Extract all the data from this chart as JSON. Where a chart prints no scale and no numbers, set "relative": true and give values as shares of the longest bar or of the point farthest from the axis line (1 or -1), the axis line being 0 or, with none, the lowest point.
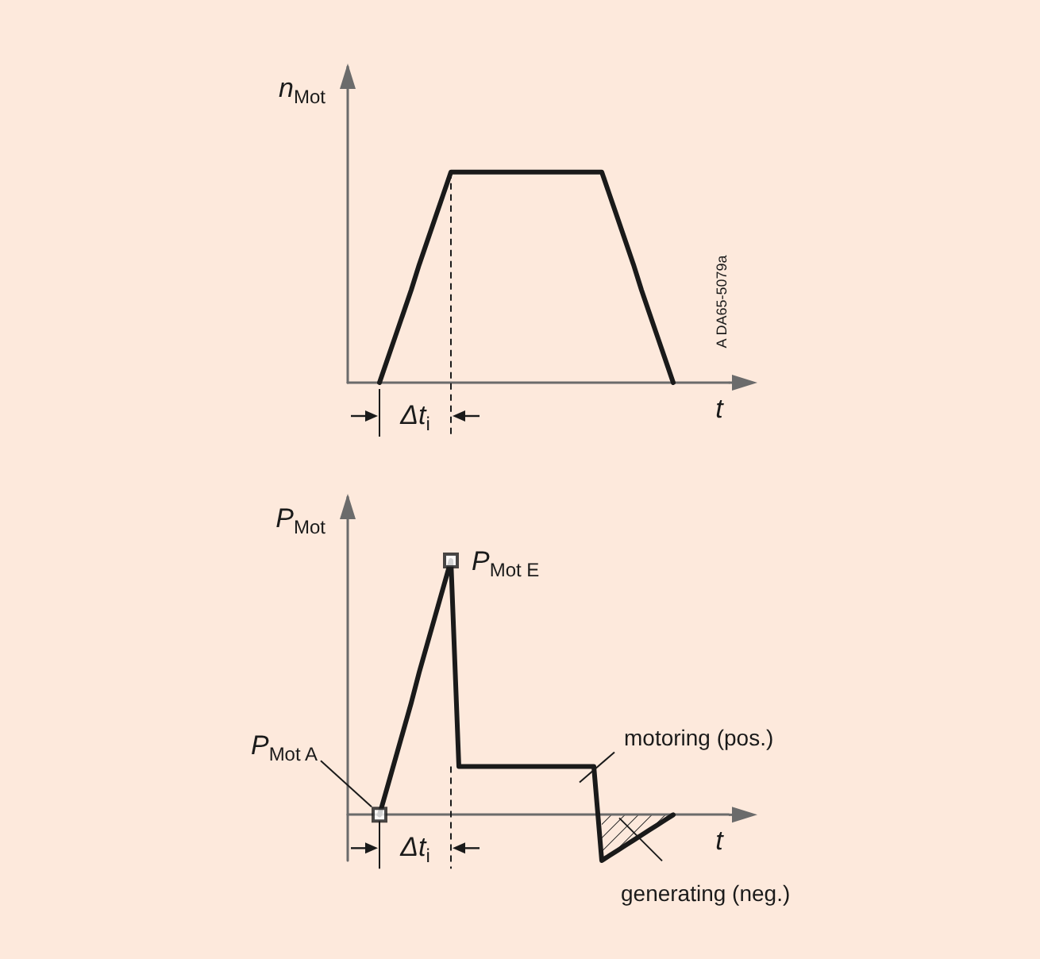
{
  "chart_data": [
    {
      "type": "line",
      "ylabel": "n$_{Mot}$",
      "xlabel": "t",
      "relative": true,
      "categories": [
        null,
        null,
        null,
        null,
        null,
        null,
        null,
        null,
        null,
        null,
        null,
        null,
        null,
        null,
        null,
        null,
        null,
        null,
        null,
        null,
        null,
        null,
        null,
        null,
        null,
        null,
        null,
        null,
        null,
        null,
        null,
        null,
        null,
        null,
        null,
        null,
        null,
        null,
        null,
        null,
        null,
        null,
        null,
        null,
        null,
        null,
        null,
        null,
        null
      ],
      "series": [
        {
          "color": "#1a1a1a",
          "marker": "none",
          "values": [
            null,
            null,
            null,
            null,
            0,
            0.11,
            0.22,
            0.33,
            0.44,
            0.56,
            0.67,
            0.78,
            0.89,
            1,
            1,
            1,
            1,
            1,
            1,
            1,
            1,
            1,
            1,
            1,
            1,
            1,
            1,
            1,
            1,
            1,
            1,
            1,
            1,
            0.89,
            0.78,
            0.67,
            0.56,
            0.44,
            0.33,
            0.22,
            0.11,
            0,
            null,
            null,
            null,
            null,
            null,
            null,
            null
          ]
        }
      ],
      "annotations": [
        "A DA65-5079a",
        "Δt$_{i}$"
      ]
    },
    {
      "type": "line",
      "ylabel": "P$_{Mot}$",
      "xlabel": "t",
      "relative": true,
      "categories": [
        null,
        null,
        null,
        null,
        null,
        null,
        null,
        null,
        null,
        null,
        null,
        null,
        null,
        null,
        null,
        null,
        null,
        null,
        null,
        null,
        null,
        null,
        null,
        null,
        null,
        null,
        null,
        null,
        null,
        null,
        null,
        null,
        null,
        null,
        null,
        null,
        null,
        null,
        null,
        null,
        null,
        null,
        null,
        null,
        null,
        null,
        null,
        null,
        null
      ],
      "series": [
        {
          "color": "#1a1a1a",
          "marker": "none",
          "values": [
            null,
            null,
            null,
            null,
            0,
            0.11,
            0.22,
            0.33,
            0.44,
            0.56,
            0.67,
            0.78,
            0.89,
            1,
            0.19,
            0.19,
            0.19,
            0.19,
            0.19,
            0.19,
            0.19,
            0.19,
            0.19,
            0.19,
            0.19,
            0.19,
            0.19,
            0.19,
            0.19,
            0.19,
            0.19,
            0.19,
            -0.18,
            -0.16,
            -0.14,
            -0.12,
            -0.1,
            -0.08,
            -0.06,
            -0.04,
            -0.02,
            0,
            null,
            null,
            null,
            null,
            null,
            null,
            null
          ]
        },
        {
          "type": "scatter",
          "color": "#1a1a1a",
          "marker": "square",
          "values": [
            null,
            null,
            null,
            null,
            0,
            null,
            null,
            null,
            null,
            null,
            null,
            null,
            null,
            1,
            null,
            null,
            null,
            null,
            null,
            null,
            null,
            null,
            null,
            null,
            null,
            null,
            null,
            null,
            null,
            null,
            null,
            null,
            null,
            null,
            null,
            null,
            null,
            null,
            null,
            null,
            null,
            null,
            null,
            null,
            null,
            null,
            null,
            null,
            null
          ]
        }
      ],
      "annotations": [
        "P$_{Mot A}$",
        "P$_{Mot E}$",
        "motoring (pos.)",
        "generating (neg.)",
        "Δt$_{i}$"
      ]
    }
  ]
}
